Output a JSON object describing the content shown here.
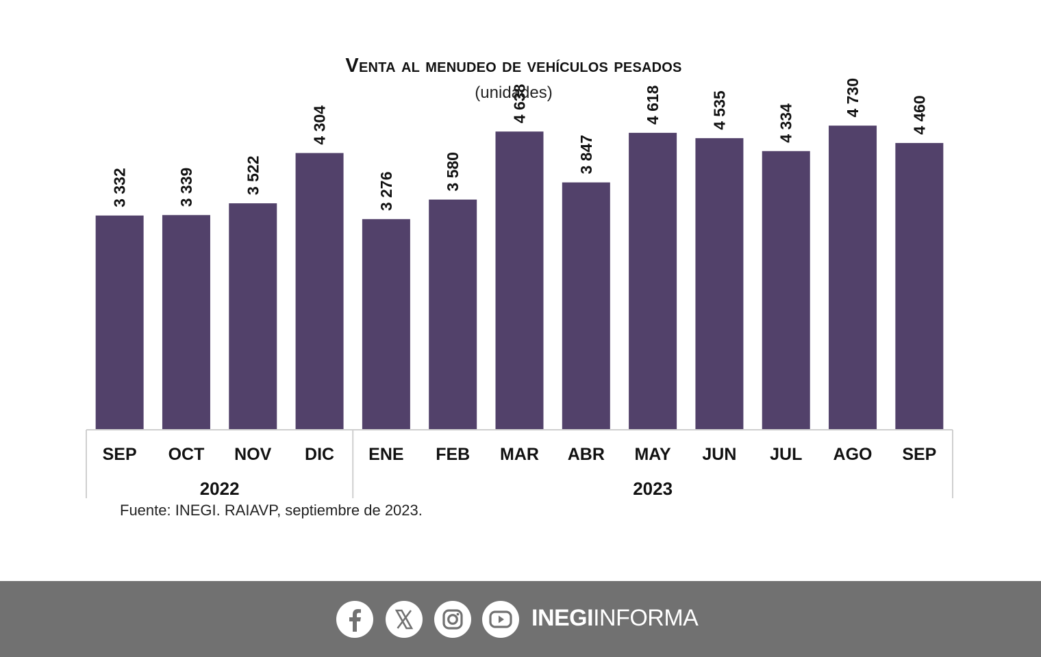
{
  "chart_data": {
    "type": "bar",
    "title": "Venta al menudeo de vehículos pesados",
    "subtitle": "(unidades)",
    "categories": [
      "SEP",
      "OCT",
      "NOV",
      "DIC",
      "ENE",
      "FEB",
      "MAR",
      "ABR",
      "MAY",
      "JUN",
      "JUL",
      "AGO",
      "SEP"
    ],
    "values": [
      3332,
      3339,
      3522,
      4304,
      3276,
      3580,
      4638,
      3847,
      4618,
      4535,
      4334,
      4730,
      4460
    ],
    "value_labels": [
      "3 332",
      "3 339",
      "3 522",
      "4 304",
      "3 276",
      "3 580",
      "4 638",
      "3 847",
      "4 618",
      "4 535",
      "4 334",
      "4 730",
      "4 460"
    ],
    "year_groups": [
      {
        "label": "2022",
        "count": 4
      },
      {
        "label": "2023",
        "count": 9
      }
    ],
    "ylim": [
      0,
      5300
    ],
    "grid": false,
    "bar_color": "#52416a",
    "source": "Fuente: INEGI. RAIAVP, septiembre de 2023."
  },
  "footer": {
    "background": "#717171",
    "icons": [
      "facebook-icon",
      "x-icon",
      "instagram-icon",
      "youtube-icon"
    ],
    "brand_bold": "INEGI",
    "brand_light": "INFORMA"
  }
}
